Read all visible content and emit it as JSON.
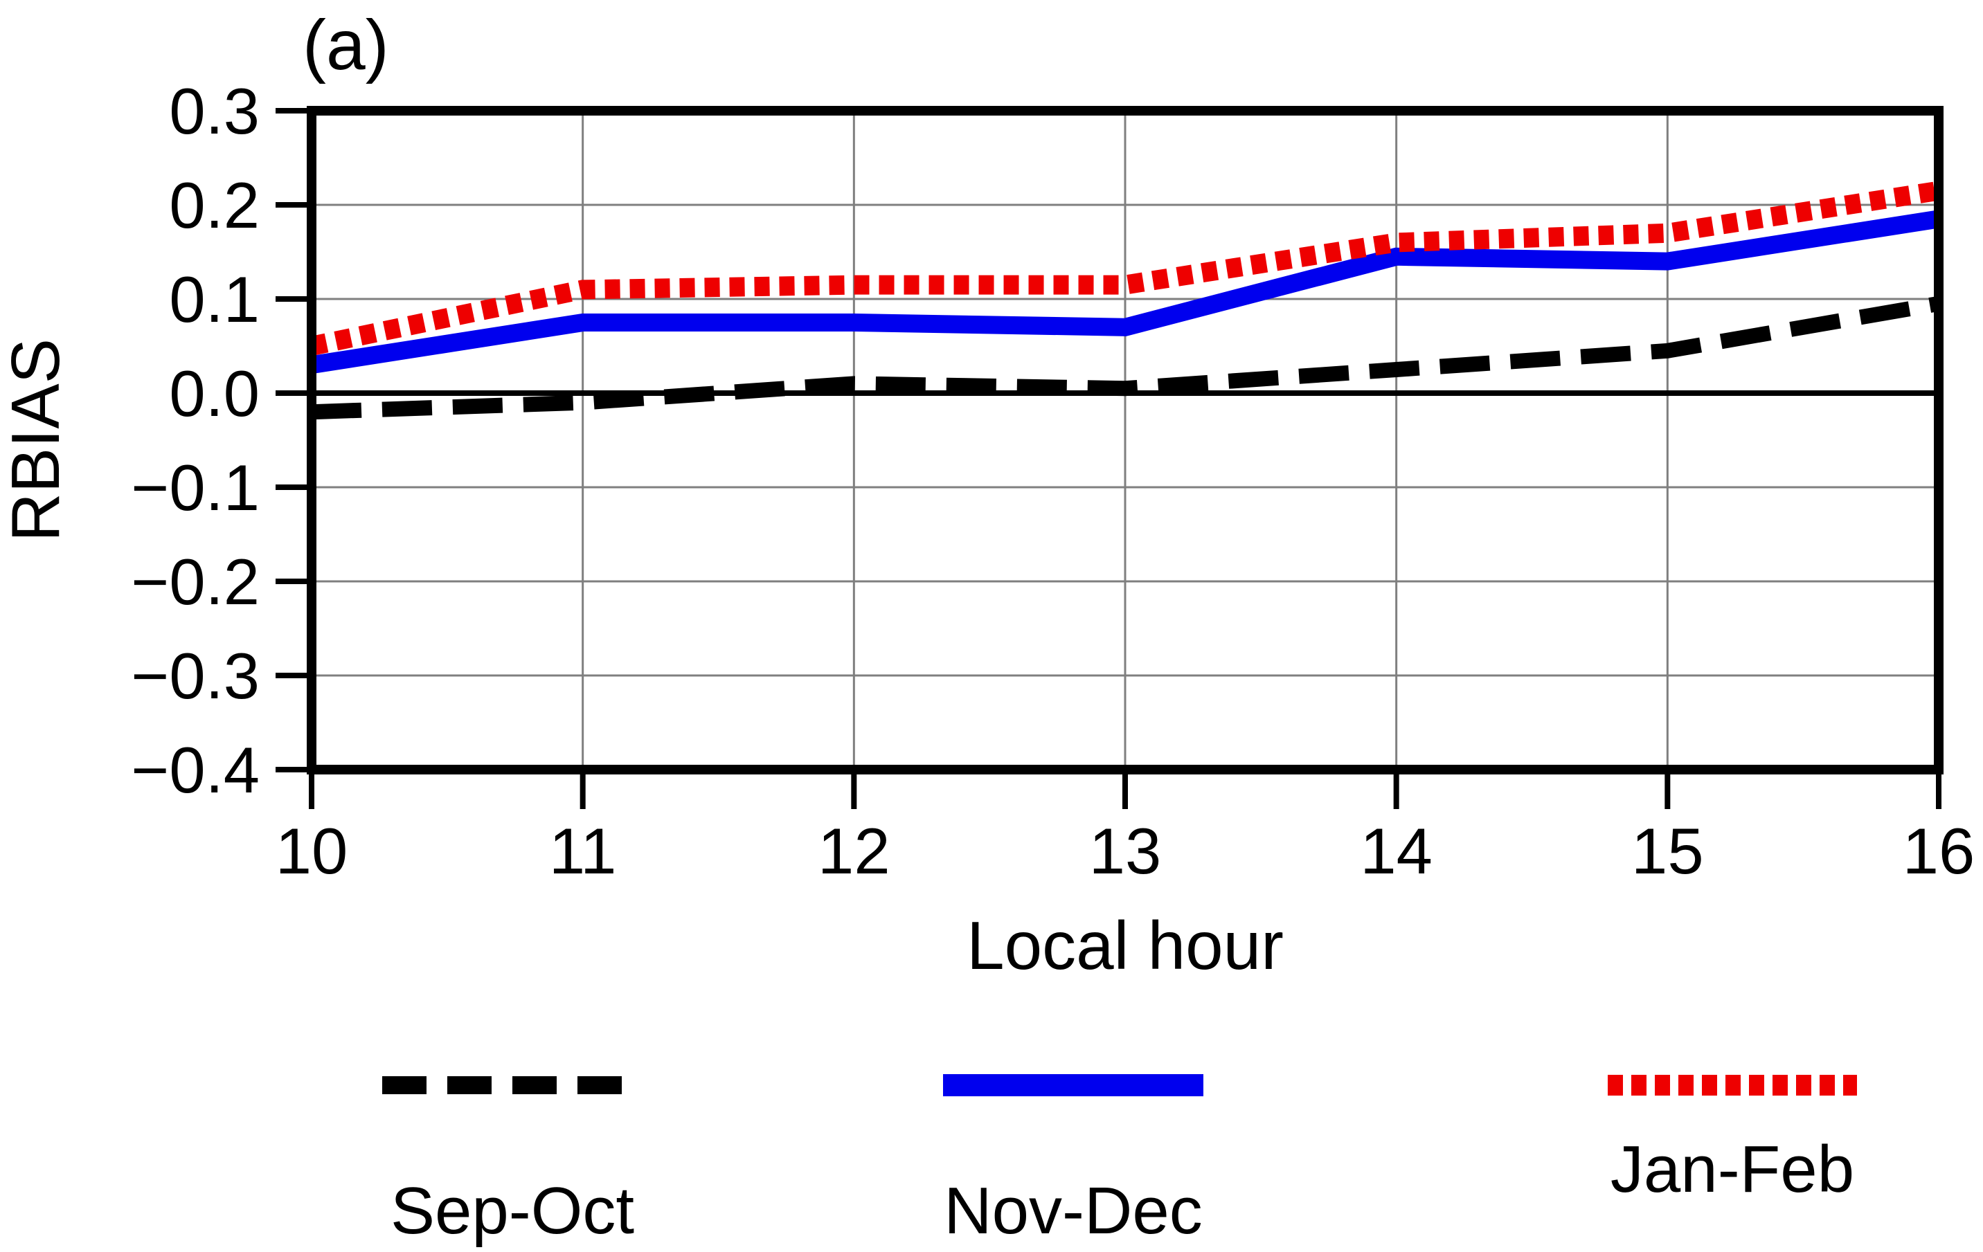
{
  "chart_data": {
    "type": "line",
    "title": "(a)",
    "xlabel": "Local hour",
    "ylabel": "RBIAS",
    "x": [
      10,
      11,
      12,
      13,
      14,
      15,
      16
    ],
    "xtick_labels": [
      "10",
      "11",
      "12",
      "13",
      "14",
      "15",
      "16"
    ],
    "yticks": [
      0.3,
      0.2,
      0.1,
      0.0,
      -0.1,
      -0.2,
      -0.3,
      -0.4
    ],
    "ytick_labels": [
      "0.3",
      "0.2",
      "0.1",
      "0.0",
      "−0.1",
      "−0.2",
      "−0.3",
      "−0.4"
    ],
    "xlim": [
      10,
      16
    ],
    "ylim": [
      -0.4,
      0.3
    ],
    "grid": true,
    "zero_line": true,
    "legend_position": "bottom",
    "series": [
      {
        "name": "Sep-Oct",
        "color": "#000000",
        "style": "dashed",
        "values": [
          -0.02,
          -0.01,
          0.01,
          0.005,
          0.025,
          0.045,
          0.095
        ]
      },
      {
        "name": "Nov-Dec",
        "color": "#0000ee",
        "style": "solid",
        "values": [
          0.03,
          0.075,
          0.075,
          0.07,
          0.145,
          0.14,
          0.185
        ]
      },
      {
        "name": "Jan-Feb",
        "color": "#ee0000",
        "style": "dotted",
        "values": [
          0.05,
          0.11,
          0.115,
          0.115,
          0.16,
          0.17,
          0.215
        ]
      }
    ]
  },
  "colors": {
    "axis": "#000000",
    "grid": "#7f7f7f",
    "background": "#ffffff",
    "sep_oct": "#000000",
    "nov_dec": "#0000ee",
    "jan_feb": "#ee0000"
  }
}
